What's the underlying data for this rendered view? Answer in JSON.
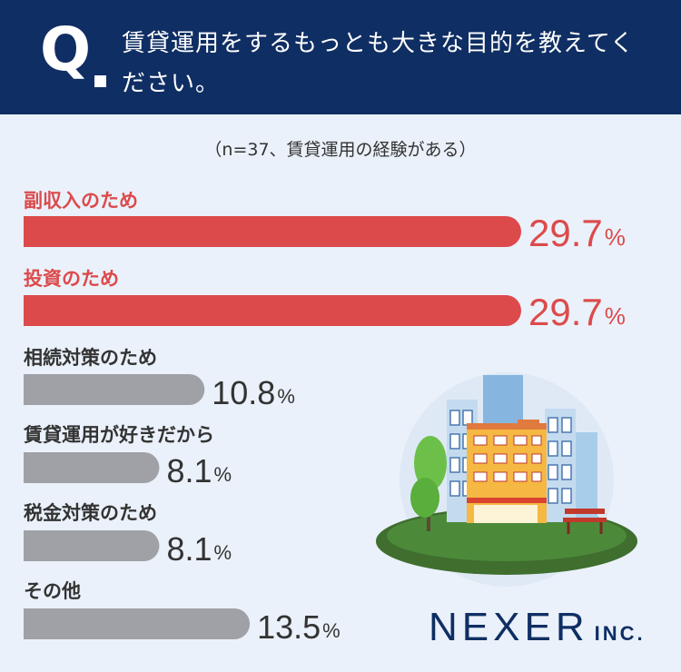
{
  "header": {
    "q_letter": "Q",
    "question": "賃貸運用をするもっとも大きな目的を教えてください。"
  },
  "note": "（n=37、賃貸運用の経験がある）",
  "logo": {
    "main": "NEXER",
    "sub": "INC."
  },
  "colors": {
    "highlight": "#dc4a4b",
    "muted": "#a0a1a6",
    "header": "#0f2e63",
    "value_dark": "#333333"
  },
  "chart_data": {
    "type": "bar",
    "orientation": "horizontal",
    "categories": [
      "副収入のため",
      "投資のため",
      "相続対策のため",
      "賃貸運用が好きだから",
      "税金対策のため",
      "その他"
    ],
    "values": [
      29.7,
      29.7,
      10.8,
      8.1,
      8.1,
      13.5
    ],
    "value_labels": [
      "29.7",
      "29.7",
      "10.8",
      "8.1",
      "8.1",
      "13.5"
    ],
    "unit": "%",
    "highlighted": [
      true,
      true,
      false,
      false,
      false,
      false
    ]
  }
}
